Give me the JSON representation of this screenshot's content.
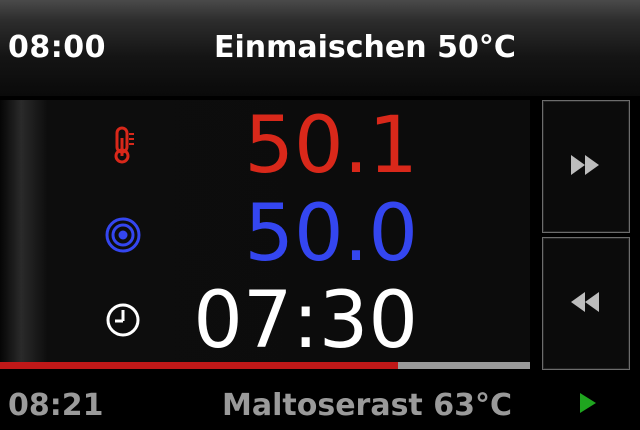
{
  "header": {
    "time": "08:00",
    "title": "Einmaischen 50°C"
  },
  "readings": {
    "temperature": {
      "value": "50.1",
      "icon": "thermometer-icon",
      "color": "#d9281a"
    },
    "target": {
      "value": "50.0",
      "icon": "target-icon",
      "color": "#3446f0"
    },
    "timer": {
      "value": "07:30",
      "icon": "clock-icon",
      "color": "#ffffff"
    }
  },
  "progress": {
    "fraction": 0.75,
    "fill_color": "#c01818"
  },
  "buttons": {
    "forward": {
      "icon": "fast-forward-icon"
    },
    "back": {
      "icon": "rewind-icon"
    }
  },
  "footer": {
    "time": "08:21",
    "title": "Maltoserast 63°C",
    "play_icon": "play-icon",
    "play_color": "#1fa51f"
  }
}
